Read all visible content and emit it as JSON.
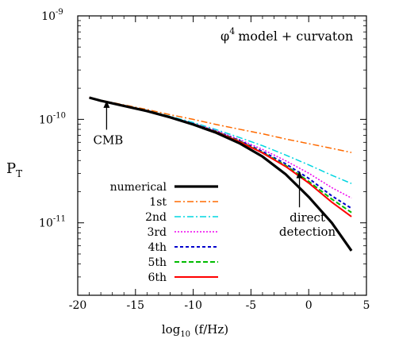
{
  "chart_data": {
    "type": "line",
    "title": "",
    "annotation_model": "model + curvaton",
    "annotation_phi": "φ",
    "annotation_power": "4",
    "xlabel_prefix": "log",
    "xlabel_sub": "10",
    "xlabel_suffix": " (f/Hz)",
    "ylabel_main": "P",
    "ylabel_sub": "T",
    "xlim": [
      -20,
      5
    ],
    "ylim_log10": [
      -11.7,
      -9.0
    ],
    "y_scale": "log",
    "x_ticks": [
      -20,
      -15,
      -10,
      -5,
      0,
      5
    ],
    "x_tick_labels": [
      "-20",
      "-15",
      "-10",
      "-5",
      "0",
      "5"
    ],
    "y_ticks": [
      {
        "base": "10",
        "exp": "-9",
        "value_log10": -9
      },
      {
        "base": "10",
        "exp": "-10",
        "value_log10": -10
      },
      {
        "base": "10",
        "exp": "-11",
        "value_log10": -11
      }
    ],
    "legend_position": "lower-left",
    "annotations": [
      {
        "text": "CMB",
        "arrow_x": -17.5,
        "arrow_from_log10": -10.1,
        "arrow_to_log10": -9.82
      },
      {
        "line1": "direct",
        "line2": "detection",
        "arrow_x": -0.8,
        "arrow_from_log10": -10.85,
        "arrow_to_log10": -10.5
      }
    ],
    "x": [
      -19,
      -18,
      -16,
      -14,
      -12,
      -10,
      -8,
      -6,
      -4,
      -2,
      0,
      2,
      3.7
    ],
    "series": [
      {
        "name": "numerical",
        "color": "#000000",
        "dash": "",
        "width": 3.2,
        "values": [
          -9.79,
          -9.82,
          -9.87,
          -9.92,
          -9.98,
          -10.05,
          -10.13,
          -10.23,
          -10.36,
          -10.53,
          -10.75,
          -11.0,
          -11.27
        ]
      },
      {
        "name": "1st",
        "color": "#ff6a00",
        "dash": "8,3,2,3",
        "width": 1.5,
        "values": [
          -9.79,
          -9.815,
          -9.86,
          -9.905,
          -9.955,
          -10.0,
          -10.05,
          -10.095,
          -10.14,
          -10.19,
          -10.235,
          -10.28,
          -10.32
        ]
      },
      {
        "name": "2nd",
        "color": "#00d5e0",
        "dash": "8,3,2,3",
        "width": 1.5,
        "values": [
          -9.79,
          -9.82,
          -9.865,
          -9.915,
          -9.97,
          -10.03,
          -10.1,
          -10.175,
          -10.255,
          -10.345,
          -10.44,
          -10.54,
          -10.62
        ]
      },
      {
        "name": "3rd",
        "color": "#ee00ee",
        "dash": "2,2",
        "width": 1.5,
        "values": [
          -9.79,
          -9.82,
          -9.87,
          -9.92,
          -9.975,
          -10.04,
          -10.11,
          -10.195,
          -10.29,
          -10.4,
          -10.52,
          -10.66,
          -10.76
        ]
      },
      {
        "name": "4th",
        "color": "#0000cc",
        "dash": "4,3",
        "width": 2,
        "values": [
          -9.79,
          -9.82,
          -9.87,
          -9.92,
          -9.977,
          -10.043,
          -10.117,
          -10.205,
          -10.31,
          -10.43,
          -10.57,
          -10.74,
          -10.86
        ]
      },
      {
        "name": "5th",
        "color": "#00bb00",
        "dash": "6,3",
        "width": 2,
        "values": [
          -9.79,
          -9.82,
          -9.87,
          -9.92,
          -9.978,
          -10.045,
          -10.12,
          -10.21,
          -10.32,
          -10.445,
          -10.6,
          -10.77,
          -10.9
        ]
      },
      {
        "name": "6th",
        "color": "#ff0000",
        "dash": "",
        "width": 2,
        "values": [
          -9.79,
          -9.82,
          -9.87,
          -9.92,
          -9.979,
          -10.046,
          -10.122,
          -10.215,
          -10.325,
          -10.455,
          -10.615,
          -10.8,
          -10.94
        ]
      }
    ]
  }
}
